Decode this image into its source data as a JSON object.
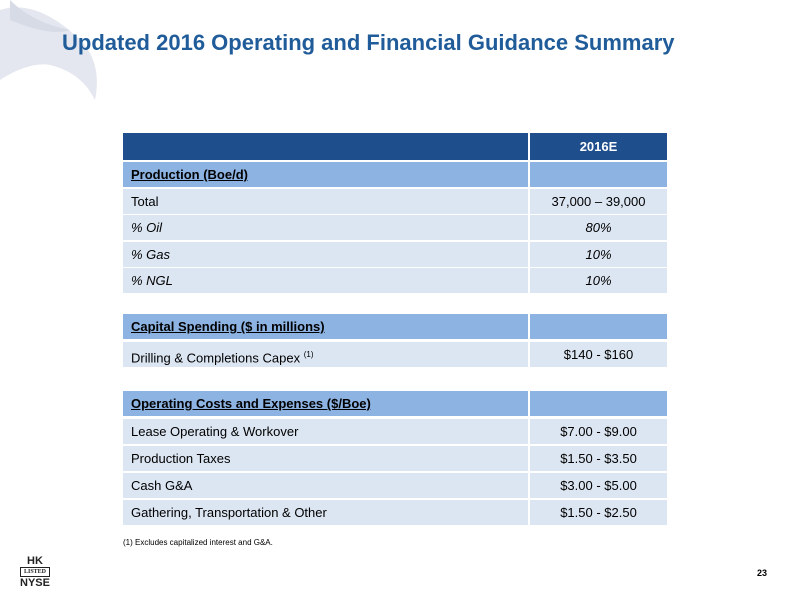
{
  "title": "Updated 2016 Operating and Financial Guidance Summary",
  "table": {
    "header": "2016E",
    "sections": [
      {
        "title": "Production (Boe/d)",
        "rows": [
          {
            "label": "Total",
            "value": "37,000 – 39,000"
          },
          {
            "label": "% Oil",
            "value": "80%"
          },
          {
            "label": "% Gas",
            "value": "10%"
          },
          {
            "label": "% NGL",
            "value": "10%"
          }
        ]
      },
      {
        "title": "Capital Spending ($ in millions)",
        "rows": [
          {
            "label": "Drilling & Completions Capex",
            "note": "(1)",
            "value": "$140 - $160"
          }
        ]
      },
      {
        "title": "Operating Costs and Expenses ($/Boe)",
        "rows": [
          {
            "label": "Lease Operating & Workover",
            "value": "$7.00 - $9.00"
          },
          {
            "label": "Production Taxes",
            "value": "$1.50 - $3.50"
          },
          {
            "label": "Cash G&A",
            "value": "$3.00 - $5.00"
          },
          {
            "label": "Gathering, Transportation & Other",
            "value": "$1.50 - $2.50"
          }
        ]
      }
    ]
  },
  "footnote": "(1) Excludes capitalized interest and G&A.",
  "logo": {
    "top": "HK",
    "middle": "LISTED",
    "bottom": "NYSE"
  },
  "page_number": "23"
}
